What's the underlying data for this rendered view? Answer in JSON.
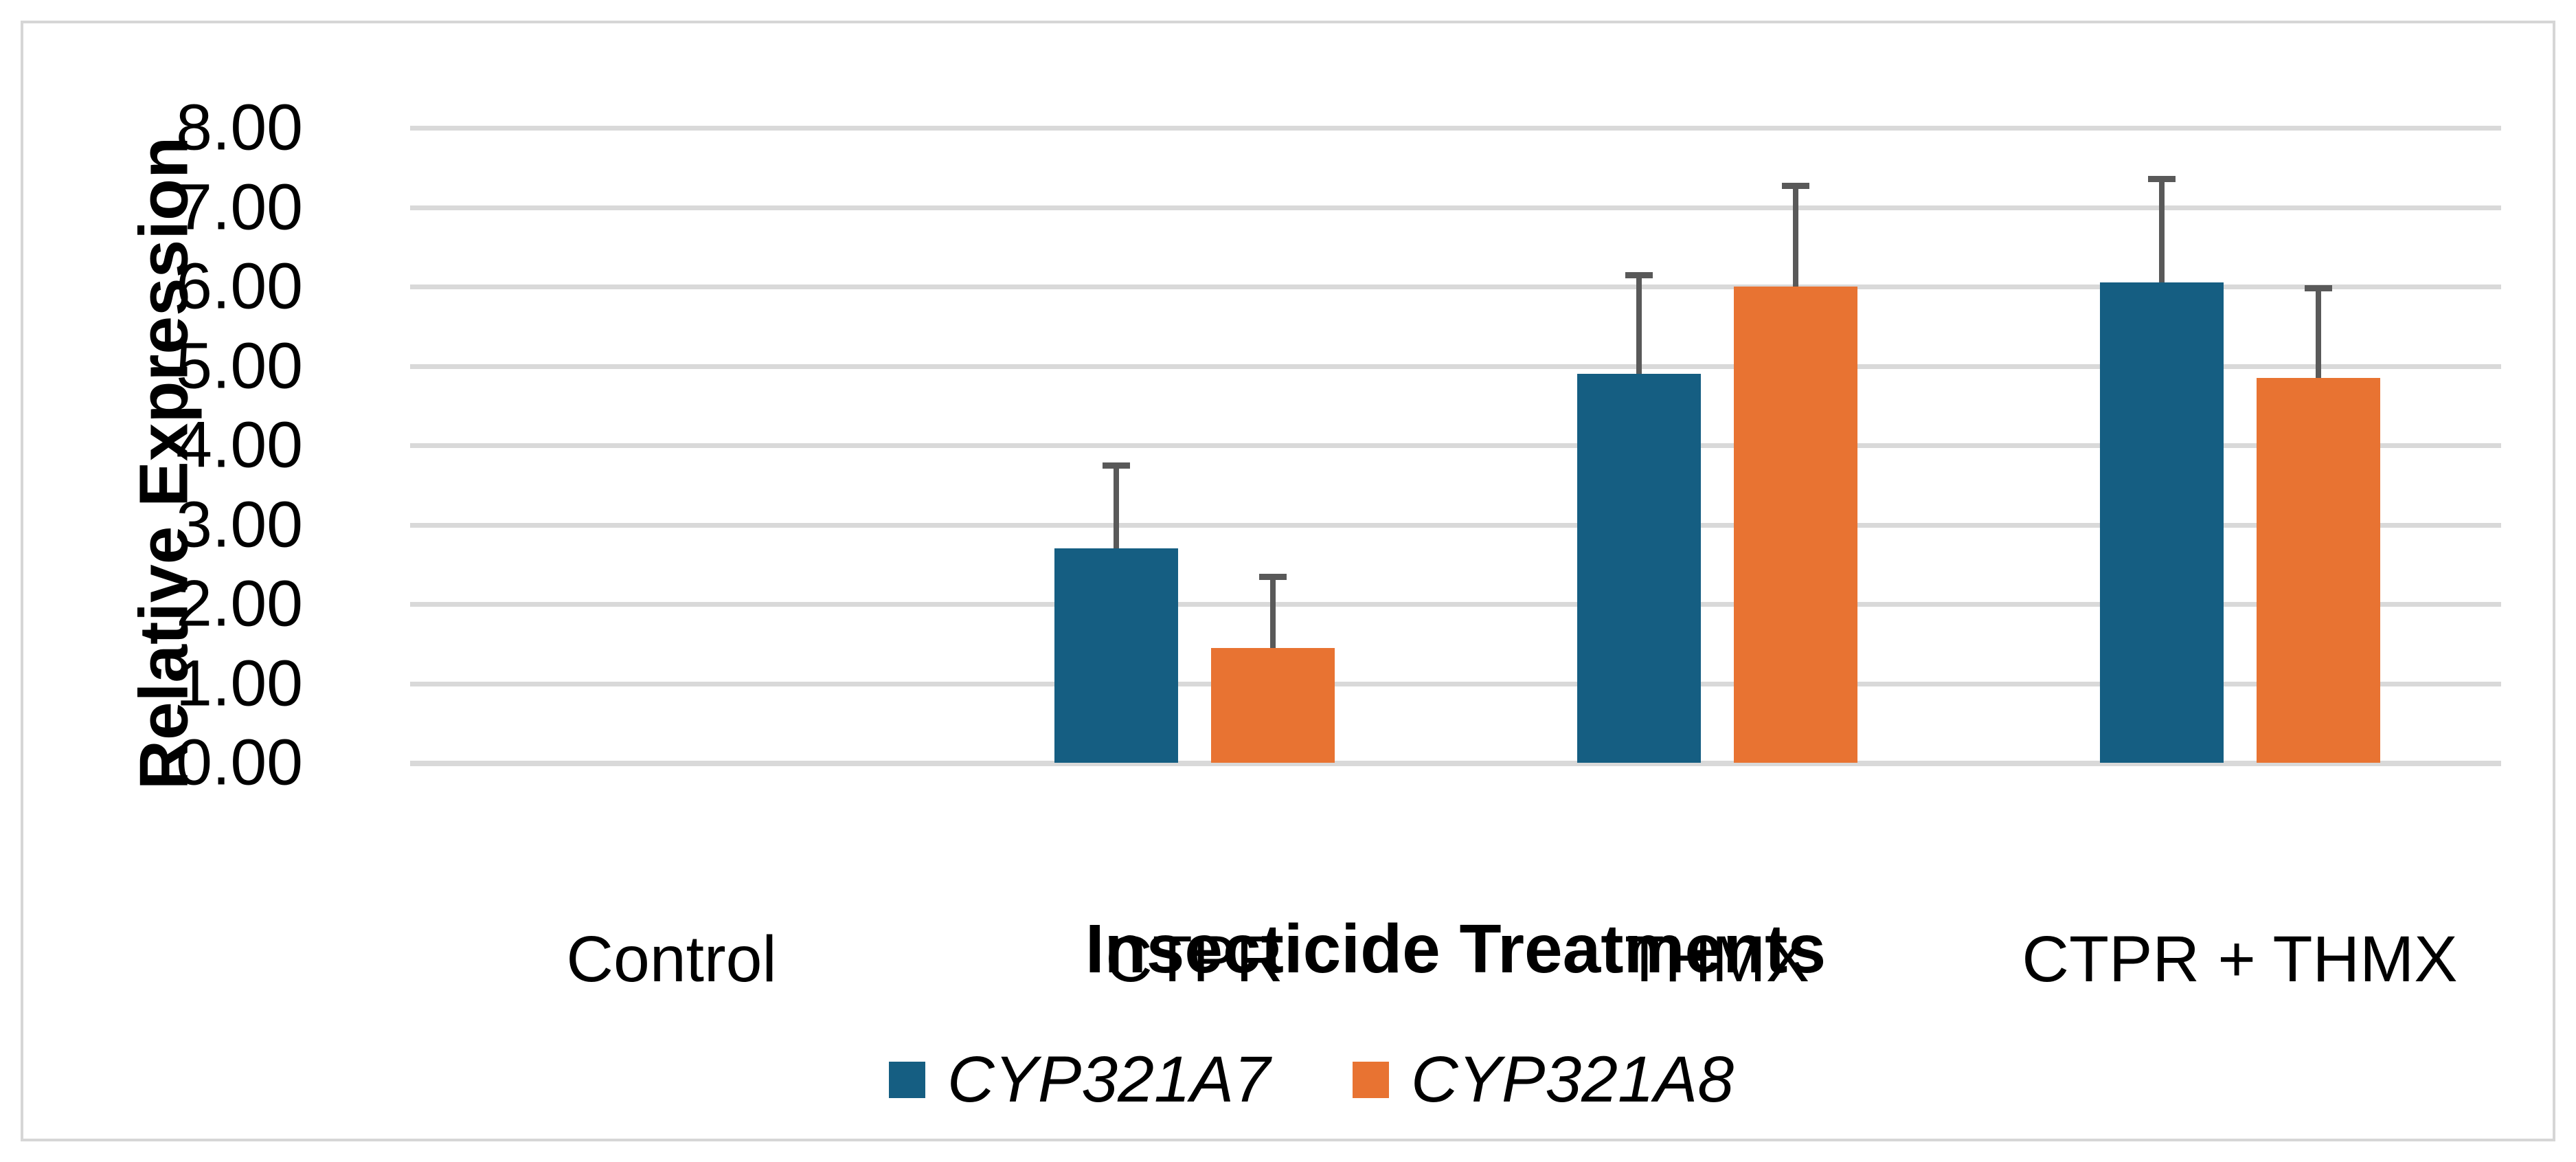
{
  "colors": {
    "series_blue": "#155E82",
    "series_orange": "#E87332",
    "gridline": "#D9D9D9",
    "error_bar": "#595959",
    "frame_border": "#D6D6D6",
    "text": "#000000"
  },
  "y_axis": {
    "title": "Relative Expression",
    "tick_labels": [
      "0.00",
      "1.00",
      "2.00",
      "3.00",
      "4.00",
      "5.00",
      "6.00",
      "7.00",
      "8.00"
    ]
  },
  "x_axis": {
    "title": "Insecticide Treatments"
  },
  "legend": {
    "items": [
      {
        "label": "CYP321A7",
        "color": "#155E82"
      },
      {
        "label": "CYP321A8",
        "color": "#E87332"
      }
    ]
  },
  "chart_data": {
    "type": "bar",
    "title": "",
    "xlabel": "Insecticide Treatments",
    "ylabel": "Relative Expression",
    "categories": [
      "Control",
      "CTPR",
      "THMX",
      "CTPR + THMX"
    ],
    "series": [
      {
        "name": "CYP321A7",
        "color": "#155E82",
        "values": [
          0,
          2.7,
          4.9,
          6.05
        ],
        "error_plus": [
          0,
          1.05,
          1.25,
          1.31
        ]
      },
      {
        "name": "CYP321A8",
        "color": "#E87332",
        "values": [
          0,
          1.45,
          6.0,
          4.85
        ],
        "error_plus": [
          0,
          0.9,
          1.27,
          1.13
        ]
      }
    ],
    "ylim": [
      0,
      8
    ],
    "ytick_step": 1,
    "ytick_decimals": 2,
    "grid": true,
    "error_bars": "plus-direction, dark grey caps",
    "legend_position": "bottom"
  }
}
